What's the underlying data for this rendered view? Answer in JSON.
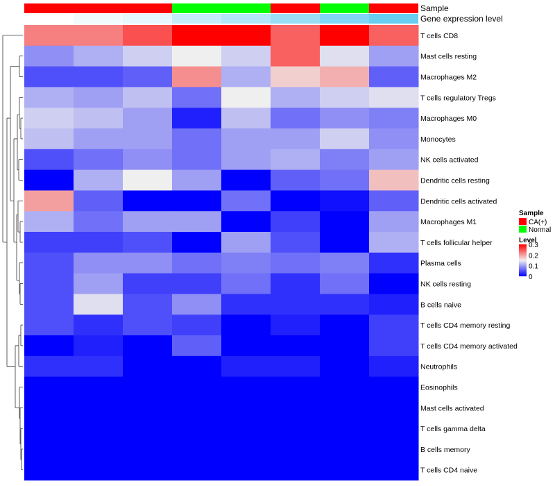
{
  "chart_data": {
    "type": "heatmap",
    "annotation_row_labels": {
      "sample": "Sample",
      "expression": "Gene expression level"
    },
    "sample_groups": [
      "CA(+)",
      "CA(+)",
      "CA(+)",
      "Normal",
      "Normal",
      "CA(+)",
      "Normal",
      "CA(+)"
    ],
    "expression_level": [
      0.0,
      0.08,
      0.15,
      0.35,
      0.45,
      0.6,
      0.75,
      0.9
    ],
    "rows": [
      "T cells CD8",
      "Mast cells resting",
      "Macrophages M2",
      "T cells regulatory  Tregs",
      "Macrophages M0",
      "Monocytes",
      "NK cells activated",
      "Dendritic cells resting",
      "Dendritic cells activated",
      "Macrophages M1",
      "T cells follicular helper",
      "Plasma cells",
      "NK cells resting",
      "B cells naive",
      "T cells CD4 memory resting",
      "T cells CD4 memory activated",
      "Neutrophils",
      "Eosinophils",
      "Mast cells activated",
      "T cells gamma delta",
      "B cells memory",
      "T cells CD4 naive"
    ],
    "values": [
      [
        0.22,
        0.22,
        0.25,
        0.3,
        0.3,
        0.24,
        0.3,
        0.24
      ],
      [
        0.09,
        0.11,
        0.13,
        0.15,
        0.13,
        0.24,
        0.14,
        0.1
      ],
      [
        0.05,
        0.05,
        0.06,
        0.21,
        0.11,
        0.17,
        0.19,
        0.06
      ],
      [
        0.11,
        0.1,
        0.12,
        0.07,
        0.15,
        0.11,
        0.13,
        0.14
      ],
      [
        0.13,
        0.12,
        0.1,
        0.02,
        0.12,
        0.07,
        0.09,
        0.08
      ],
      [
        0.12,
        0.1,
        0.1,
        0.07,
        0.1,
        0.1,
        0.13,
        0.09
      ],
      [
        0.05,
        0.07,
        0.09,
        0.07,
        0.1,
        0.11,
        0.08,
        0.1
      ],
      [
        0.0,
        0.11,
        0.15,
        0.1,
        0.0,
        0.06,
        0.07,
        0.18
      ],
      [
        0.2,
        0.06,
        0.0,
        0.0,
        0.07,
        0.0,
        0.01,
        0.06
      ],
      [
        0.11,
        0.07,
        0.1,
        0.1,
        0.0,
        0.04,
        0.0,
        0.1
      ],
      [
        0.04,
        0.04,
        0.05,
        0.0,
        0.1,
        0.05,
        0.0,
        0.11
      ],
      [
        0.05,
        0.09,
        0.09,
        0.07,
        0.08,
        0.07,
        0.08,
        0.03
      ],
      [
        0.05,
        0.1,
        0.04,
        0.04,
        0.07,
        0.03,
        0.07,
        0.0
      ],
      [
        0.05,
        0.14,
        0.05,
        0.09,
        0.03,
        0.03,
        0.03,
        0.02
      ],
      [
        0.05,
        0.03,
        0.05,
        0.04,
        0.0,
        0.02,
        0.0,
        0.04
      ],
      [
        0.0,
        0.02,
        0.0,
        0.06,
        0.0,
        0.0,
        0.0,
        0.04
      ],
      [
        0.03,
        0.03,
        0.0,
        0.0,
        0.02,
        0.02,
        0.0,
        0.02
      ],
      [
        0.0,
        0.0,
        0.0,
        0.0,
        0.0,
        0.0,
        0.0,
        0.0
      ],
      [
        0.0,
        0.0,
        0.0,
        0.0,
        0.0,
        0.0,
        0.0,
        0.0
      ],
      [
        0.0,
        0.0,
        0.0,
        0.0,
        0.0,
        0.0,
        0.0,
        0.0
      ],
      [
        0.0,
        0.0,
        0.0,
        0.0,
        0.0,
        0.0,
        0.0,
        0.0
      ],
      [
        0.0,
        0.0,
        0.0,
        0.0,
        0.0,
        0.0,
        0.0,
        0.0
      ]
    ],
    "color_scale": {
      "min": 0,
      "mid": 0.15,
      "max": 0.3,
      "low": "#0000ff",
      "mid_color": "#efefef",
      "high": "#ff0000"
    },
    "legend": {
      "sample_title": "Sample",
      "sample_items": [
        {
          "label": "CA(+)",
          "color": "#ff0000"
        },
        {
          "label": "Normal",
          "color": "#00ff00"
        }
      ],
      "level_title": "Level",
      "level_ticks": [
        {
          "value": 0.3,
          "label": "0.3"
        },
        {
          "value": 0.2,
          "label": "0.2"
        },
        {
          "value": 0.1,
          "label": "0.1"
        },
        {
          "value": 0,
          "label": "0"
        }
      ]
    },
    "dendrogram": "row clustering tree on the left"
  }
}
